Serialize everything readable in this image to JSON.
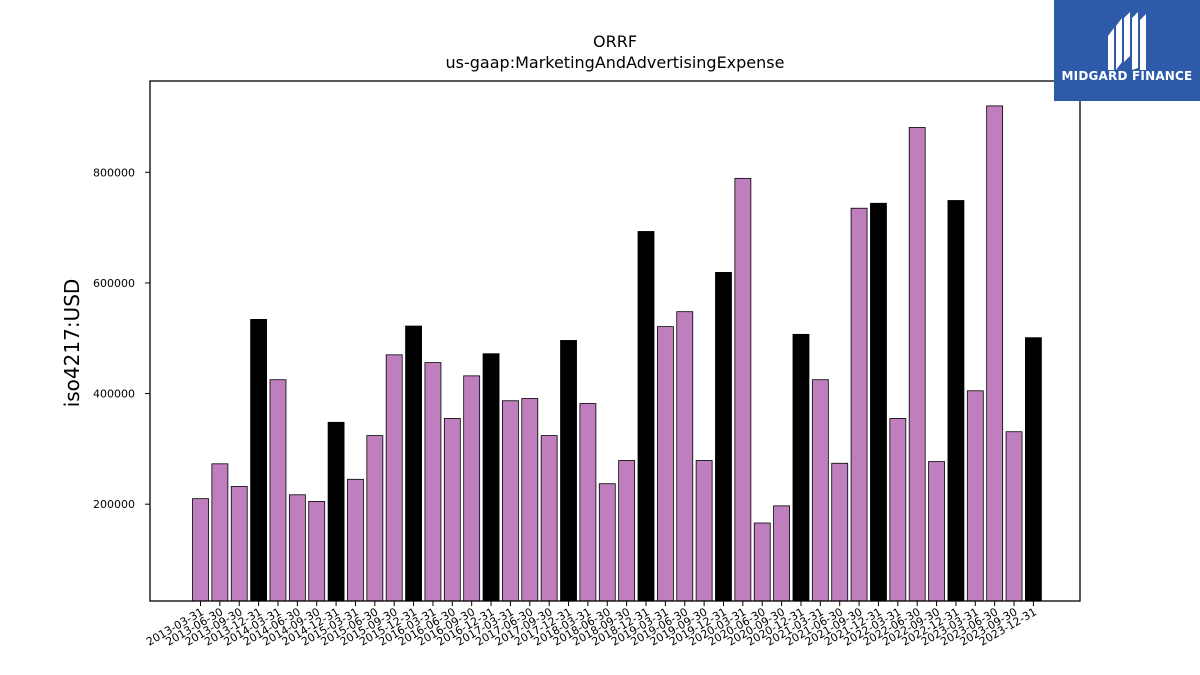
{
  "brand": {
    "name": "MIDGARD FINANCE",
    "bg_color": "#2d5baa",
    "icon": "midgard-logo-icon"
  },
  "chart_data": {
    "type": "bar",
    "title": "ORRF",
    "subtitle": "us-gaap:MarketingAndAdvertisingExpense",
    "xlabel": "",
    "ylabel": "iso4217:USD",
    "ylim": [
      25000,
      965000
    ],
    "yticks": [
      200000,
      400000,
      600000,
      800000
    ],
    "grid": false,
    "colors": {
      "quarter": "#bf7fbf",
      "year_end": "#000000",
      "edge": "#000000"
    },
    "categories": [
      "2013-03-31",
      "2013-06-30",
      "2013-09-30",
      "2013-12-31",
      "2014-03-31",
      "2014-06-30",
      "2014-09-30",
      "2014-12-31",
      "2015-03-31",
      "2015-06-30",
      "2015-09-30",
      "2015-12-31",
      "2016-03-31",
      "2016-06-30",
      "2016-09-30",
      "2016-12-31",
      "2017-03-31",
      "2017-06-30",
      "2017-09-30",
      "2017-12-31",
      "2018-03-31",
      "2018-06-30",
      "2018-09-30",
      "2018-12-31",
      "2019-03-31",
      "2019-06-30",
      "2019-09-30",
      "2019-12-31",
      "2020-03-31",
      "2020-06-30",
      "2020-09-30",
      "2020-12-31",
      "2021-03-31",
      "2021-06-30",
      "2021-09-30",
      "2021-12-31",
      "2022-03-31",
      "2022-06-30",
      "2022-09-30",
      "2022-12-31",
      "2023-03-31",
      "2023-06-30",
      "2023-09-30",
      "2023-12-31"
    ],
    "values": [
      210000,
      273000,
      232000,
      534000,
      425000,
      217000,
      205000,
      348000,
      245000,
      324000,
      470000,
      522000,
      456000,
      355000,
      432000,
      472000,
      387000,
      391000,
      324000,
      496000,
      382000,
      237000,
      279000,
      693000,
      521000,
      548000,
      279000,
      619000,
      789000,
      166000,
      197000,
      507000,
      425000,
      274000,
      735000,
      744000,
      355000,
      881000,
      277000,
      749000,
      405000,
      920000,
      331000,
      501000
    ]
  }
}
